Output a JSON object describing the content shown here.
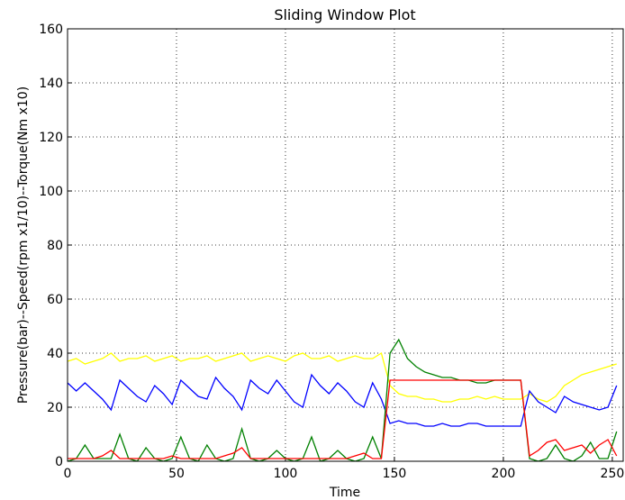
{
  "chart_data": {
    "type": "line",
    "title": "Sliding Window Plot",
    "x_label": "Time",
    "y_label": "Pressure(bar)--Speed(rpm x1/10)--Torque(Nm x10)",
    "x": [
      0,
      4,
      8,
      12,
      16,
      20,
      24,
      28,
      32,
      36,
      40,
      44,
      48,
      52,
      56,
      60,
      64,
      68,
      72,
      76,
      80,
      84,
      88,
      92,
      96,
      100,
      104,
      108,
      112,
      116,
      120,
      124,
      128,
      132,
      136,
      140,
      144,
      148,
      152,
      156,
      160,
      164,
      168,
      172,
      176,
      180,
      184,
      188,
      192,
      196,
      200,
      204,
      208,
      212,
      216,
      220,
      224,
      228,
      232,
      236,
      240,
      244,
      248,
      252
    ],
    "series": [
      {
        "color": "#ffff00",
        "values": [
          37,
          38,
          36,
          37,
          38,
          40,
          37,
          38,
          38,
          39,
          37,
          38,
          39,
          37,
          38,
          38,
          39,
          37,
          38,
          39,
          40,
          37,
          38,
          39,
          38,
          37,
          39,
          40,
          38,
          38,
          39,
          37,
          38,
          39,
          38,
          38,
          40,
          28,
          25,
          24,
          24,
          23,
          23,
          22,
          22,
          23,
          23,
          24,
          23,
          24,
          23,
          23,
          23,
          25,
          23,
          22,
          24,
          28,
          30,
          32,
          33,
          34,
          35,
          36
        ]
      },
      {
        "color": "#0000ff",
        "values": [
          29,
          26,
          29,
          26,
          23,
          19,
          30,
          27,
          24,
          22,
          28,
          25,
          21,
          30,
          27,
          24,
          23,
          31,
          27,
          24,
          19,
          30,
          27,
          25,
          30,
          26,
          22,
          20,
          32,
          28,
          25,
          29,
          26,
          22,
          20,
          29,
          23,
          14,
          15,
          14,
          14,
          13,
          13,
          14,
          13,
          13,
          14,
          14,
          13,
          13,
          13,
          13,
          13,
          26,
          22,
          20,
          18,
          24,
          22,
          21,
          20,
          19,
          20,
          28
        ]
      },
      {
        "color": "#008000",
        "values": [
          0,
          1,
          6,
          1,
          1,
          1,
          10,
          1,
          0,
          5,
          1,
          0,
          1,
          9,
          1,
          0,
          6,
          1,
          0,
          1,
          12,
          1,
          0,
          1,
          4,
          1,
          0,
          1,
          9,
          0,
          1,
          4,
          1,
          0,
          1,
          9,
          1,
          40,
          45,
          38,
          35,
          33,
          32,
          31,
          31,
          30,
          30,
          29,
          29,
          30,
          30,
          30,
          30,
          1,
          0,
          1,
          6,
          1,
          0,
          2,
          7,
          1,
          1,
          11
        ]
      },
      {
        "color": "#ff0000",
        "values": [
          1,
          1,
          1,
          1,
          2,
          4,
          1,
          1,
          1,
          1,
          1,
          1,
          2,
          1,
          1,
          1,
          1,
          1,
          2,
          3,
          5,
          1,
          1,
          1,
          1,
          1,
          1,
          1,
          1,
          1,
          1,
          1,
          1,
          2,
          3,
          1,
          1,
          30,
          30,
          30,
          30,
          30,
          30,
          30,
          30,
          30,
          30,
          30,
          30,
          30,
          30,
          30,
          30,
          2,
          4,
          7,
          8,
          4,
          5,
          6,
          3,
          6,
          8,
          2
        ]
      }
    ],
    "xlim": [
      0,
      255
    ],
    "ylim": [
      0,
      160
    ],
    "xticks": [
      0,
      50,
      100,
      150,
      200,
      250
    ],
    "yticks": [
      0,
      20,
      40,
      60,
      80,
      100,
      120,
      140,
      160
    ],
    "grid": true
  }
}
